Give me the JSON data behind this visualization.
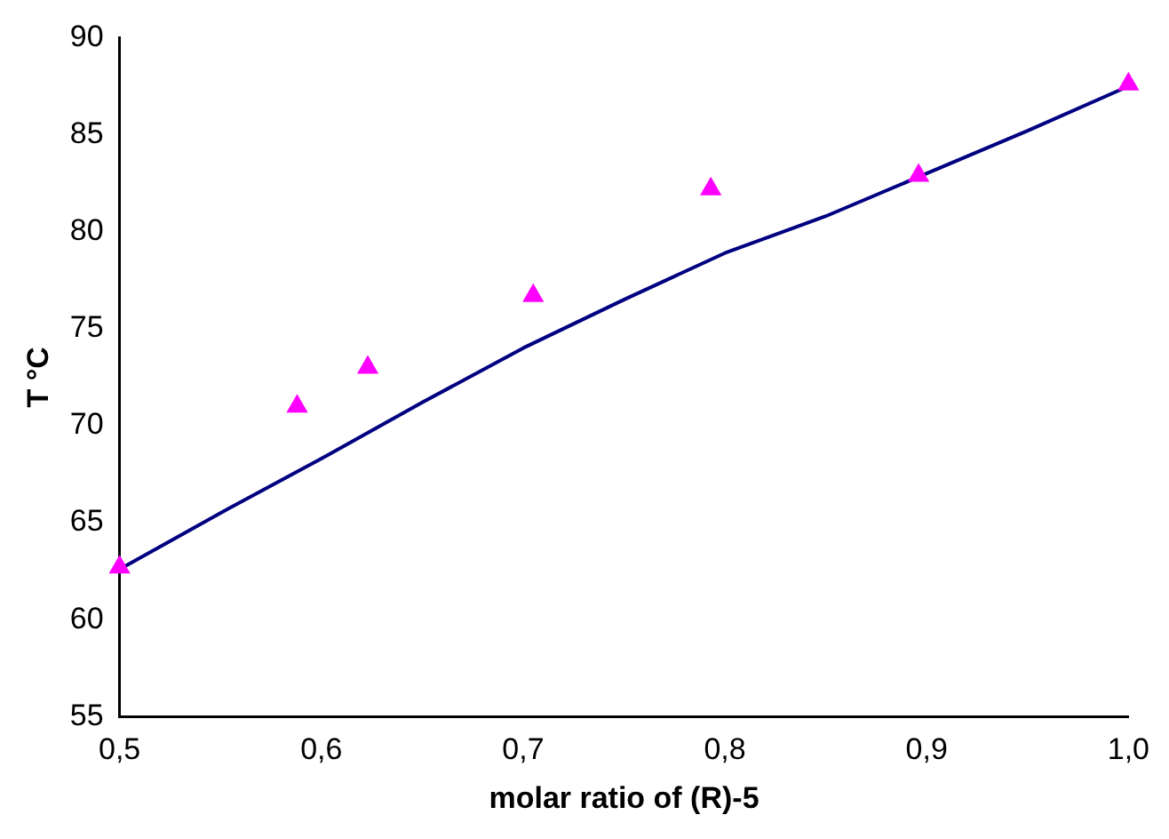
{
  "chart_data": {
    "type": "scatter",
    "xlabel": "molar ratio of (R)-5",
    "ylabel": "T °C",
    "series": [
      {
        "color": "#ff00ff",
        "marker": "triangle",
        "x": [
          0.5,
          0.588,
          0.623,
          0.705,
          0.793,
          0.896,
          1.0
        ],
        "values": [
          62.7,
          71.0,
          73.0,
          76.7,
          82.2,
          82.9,
          87.6
        ]
      },
      {
        "type": "line",
        "color": "#000080",
        "marker": "none",
        "x": [
          0.5,
          0.55,
          0.6,
          0.65,
          0.7,
          0.75,
          0.8,
          0.85,
          0.9,
          0.95,
          1.0
        ],
        "values": [
          62.6,
          65.5,
          68.3,
          71.2,
          74.0,
          76.5,
          78.9,
          80.8,
          83.0,
          85.2,
          87.5
        ]
      }
    ],
    "xlim": [
      0.5,
      1.0
    ],
    "xticks": [
      {
        "value": 0.5,
        "label": "0,5"
      },
      {
        "value": 0.6,
        "label": "0,6"
      },
      {
        "value": 0.7,
        "label": "0,7"
      },
      {
        "value": 0.8,
        "label": "0,8"
      },
      {
        "value": 0.9,
        "label": "0,9"
      },
      {
        "value": 1.0,
        "label": "1,0"
      }
    ],
    "ylim": [
      55,
      90
    ],
    "yticks": [
      55,
      60,
      65,
      70,
      75,
      80,
      85,
      90
    ],
    "grid": false,
    "legend": false
  }
}
